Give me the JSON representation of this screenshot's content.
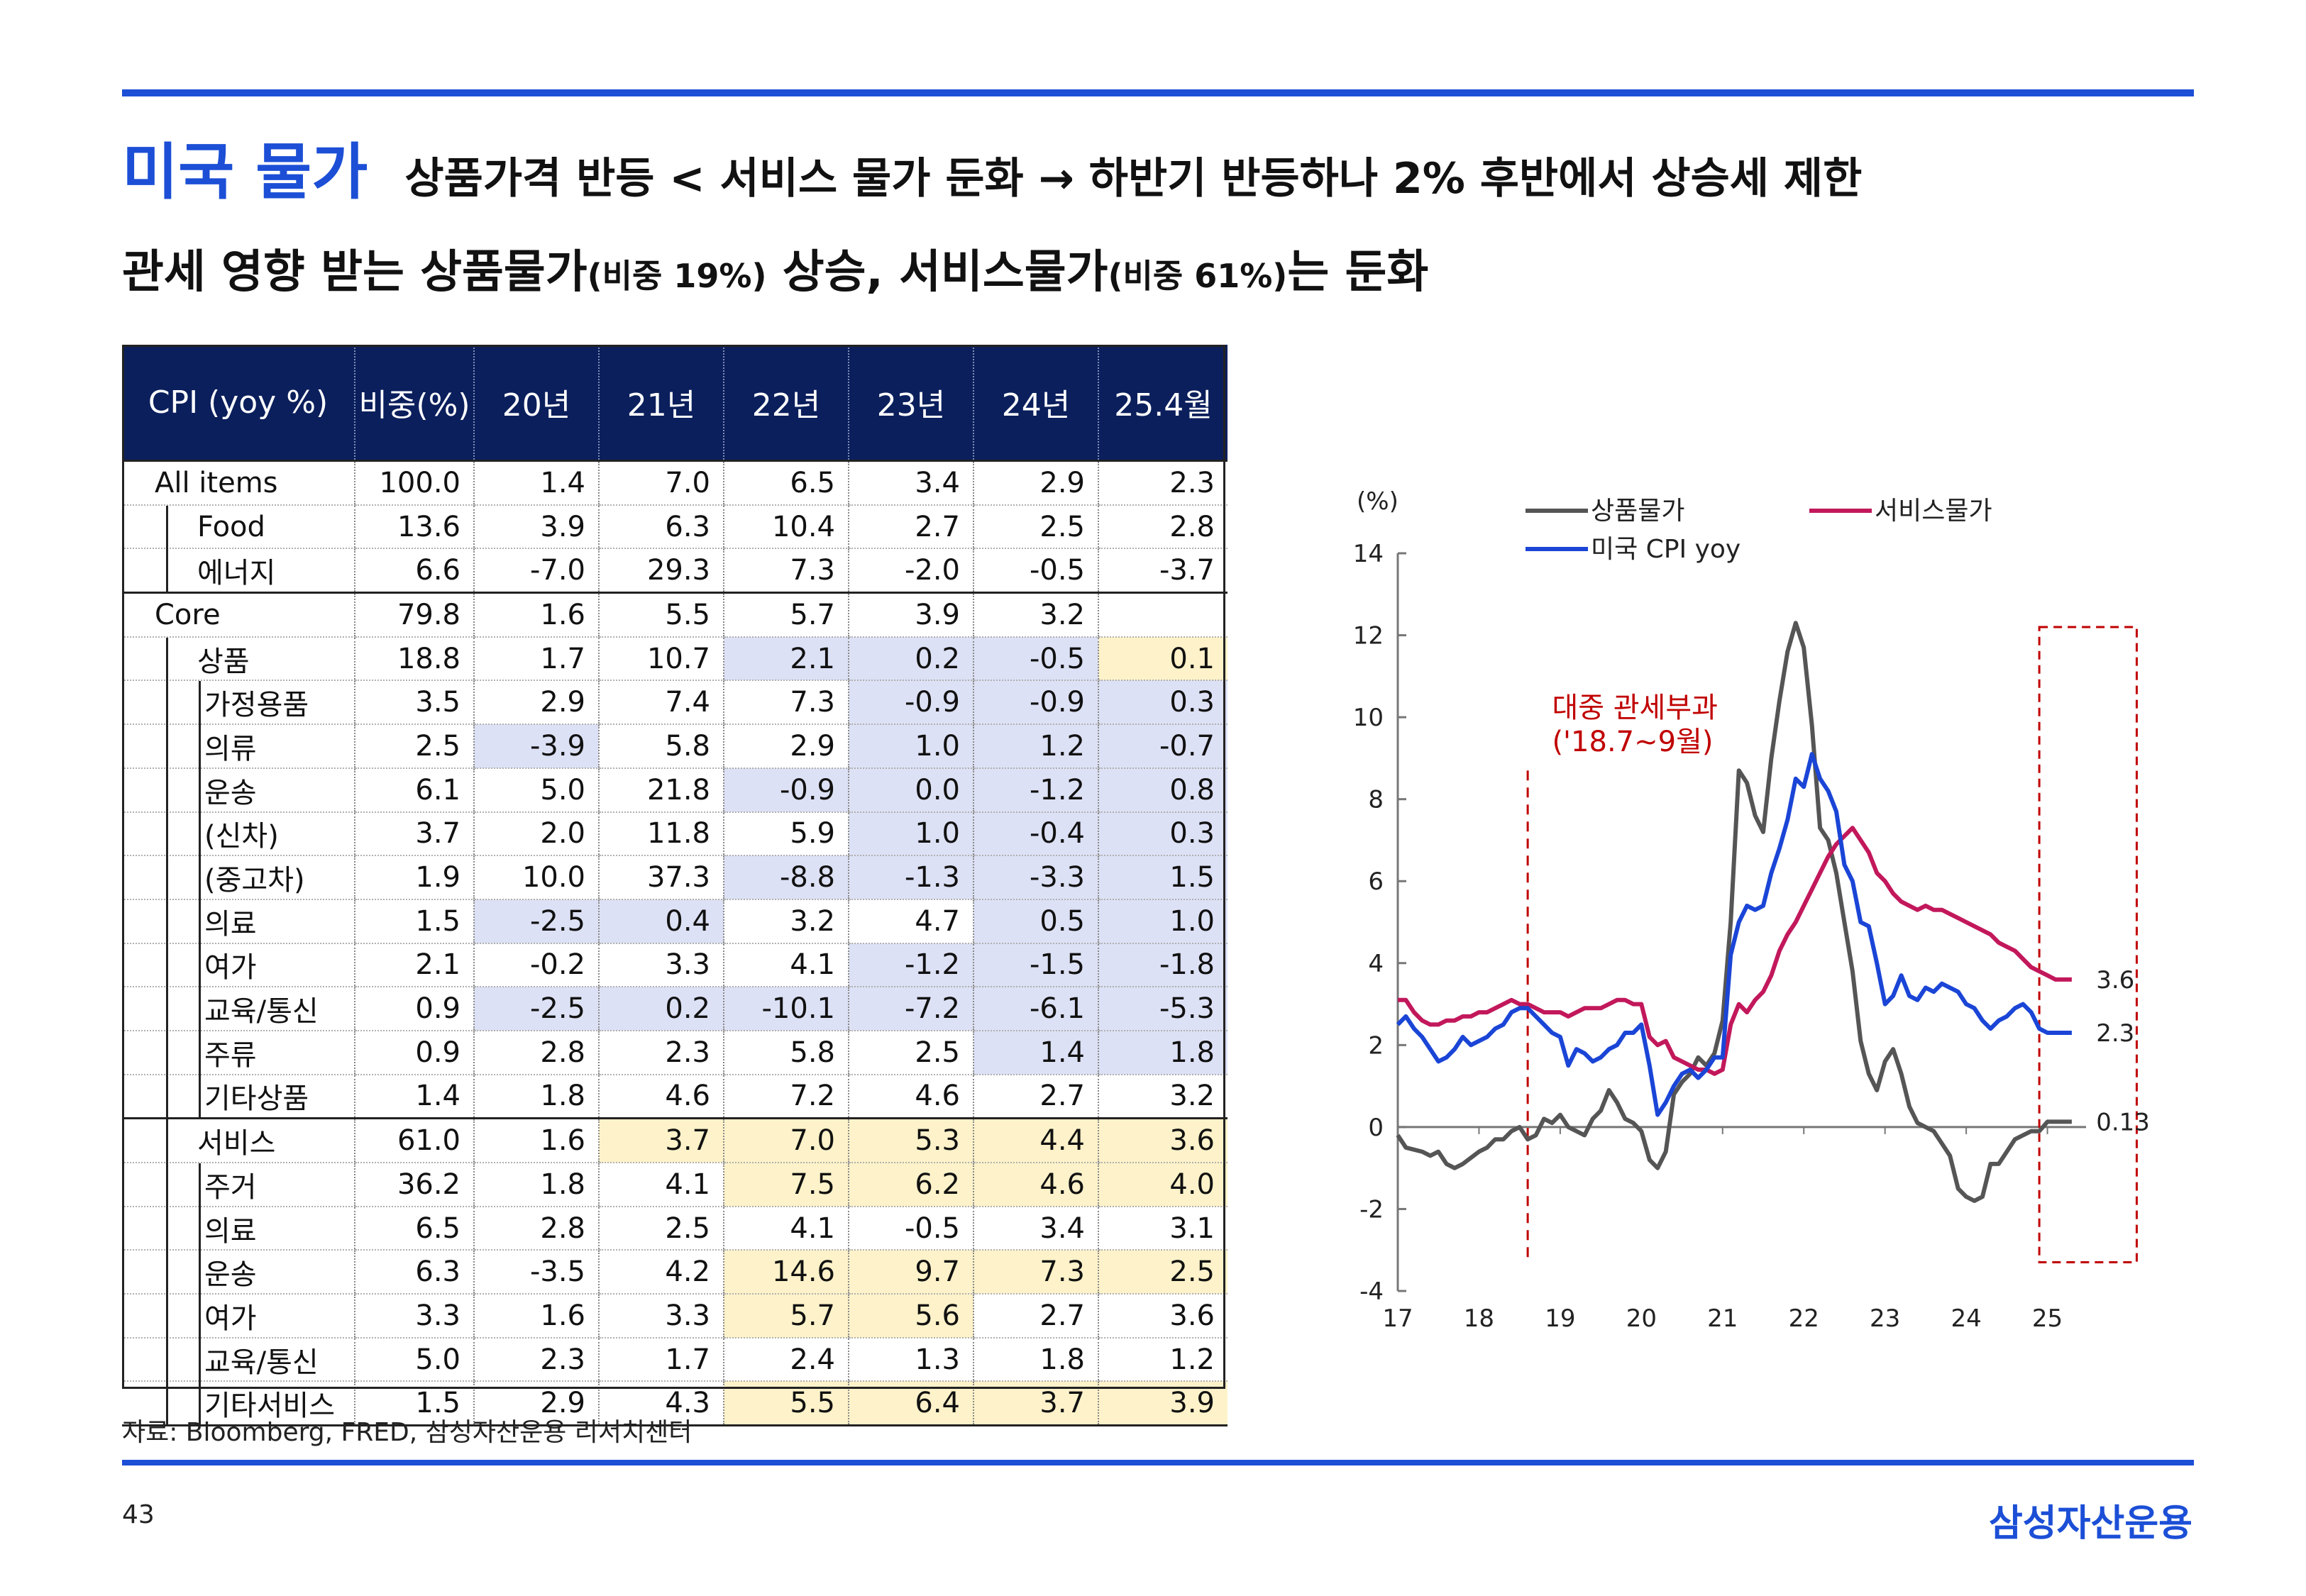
{
  "header": {
    "section_title": "미국 물가",
    "subtitle": "상품가격 반등 < 서비스 물가 둔화  → 하반기 반등하나 2% 후반에서 상승세 제한"
  },
  "headline": {
    "part1": "관세 영향 받는 상품물가",
    "part1_small": "(비중 19%)",
    "part2": " 상승, 서비스물가",
    "part2_small": "(비중 61%)",
    "part3": "는 둔화"
  },
  "table": {
    "headers": [
      "CPI (yoy %)",
      "비중(%)",
      "20년",
      "21년",
      "22년",
      "23년",
      "24년",
      "25.4월"
    ],
    "rows": [
      {
        "label": "All items",
        "indent": 0,
        "group_start": true,
        "values": [
          "100.0",
          "1.4",
          "7.0",
          "6.5",
          "3.4",
          "2.9",
          "2.3"
        ],
        "shade": [
          "",
          "",
          "",
          "",
          "",
          "",
          ""
        ]
      },
      {
        "label": "Food",
        "indent": 1,
        "values": [
          "13.6",
          "3.9",
          "6.3",
          "10.4",
          "2.7",
          "2.5",
          "2.8"
        ],
        "shade": [
          "",
          "",
          "",
          "",
          "",
          "",
          ""
        ]
      },
      {
        "label": "에너지",
        "indent": 1,
        "values": [
          "6.6",
          "-7.0",
          "29.3",
          "7.3",
          "-2.0",
          "-0.5",
          "-3.7"
        ],
        "shade": [
          "",
          "",
          "",
          "",
          "",
          "",
          ""
        ]
      },
      {
        "label": "Core",
        "indent": 0,
        "group_start": true,
        "values": [
          "79.8",
          "1.6",
          "5.5",
          "5.7",
          "3.9",
          "3.2",
          ""
        ],
        "shade": [
          "",
          "",
          "",
          "",
          "",
          "",
          ""
        ]
      },
      {
        "label": "상품",
        "indent": 1,
        "values": [
          "18.8",
          "1.7",
          "10.7",
          "2.1",
          "0.2",
          "-0.5",
          "0.1"
        ],
        "shade": [
          "",
          "",
          "",
          "blue",
          "blue",
          "blue",
          "yellow"
        ]
      },
      {
        "label": "가정용품",
        "indent": 2,
        "values": [
          "3.5",
          "2.9",
          "7.4",
          "7.3",
          "-0.9",
          "-0.9",
          "0.3"
        ],
        "shade": [
          "",
          "",
          "",
          "",
          "blue",
          "blue",
          "blue"
        ]
      },
      {
        "label": "의류",
        "indent": 2,
        "values": [
          "2.5",
          "-3.9",
          "5.8",
          "2.9",
          "1.0",
          "1.2",
          "-0.7"
        ],
        "shade": [
          "",
          "blue",
          "",
          "",
          "blue",
          "blue",
          "blue"
        ]
      },
      {
        "label": "운송",
        "indent": 2,
        "values": [
          "6.1",
          "5.0",
          "21.8",
          "-0.9",
          "0.0",
          "-1.2",
          "0.8"
        ],
        "shade": [
          "",
          "",
          "",
          "blue",
          "blue",
          "blue",
          "blue"
        ]
      },
      {
        "label": "(신차)",
        "indent": 2,
        "values": [
          "3.7",
          "2.0",
          "11.8",
          "5.9",
          "1.0",
          "-0.4",
          "0.3"
        ],
        "shade": [
          "",
          "",
          "",
          "",
          "blue",
          "blue",
          "blue"
        ]
      },
      {
        "label": "(중고차)",
        "indent": 2,
        "values": [
          "1.9",
          "10.0",
          "37.3",
          "-8.8",
          "-1.3",
          "-3.3",
          "1.5"
        ],
        "shade": [
          "",
          "",
          "",
          "blue",
          "blue",
          "blue",
          "blue"
        ]
      },
      {
        "label": "의료",
        "indent": 2,
        "values": [
          "1.5",
          "-2.5",
          "0.4",
          "3.2",
          "4.7",
          "0.5",
          "1.0"
        ],
        "shade": [
          "",
          "blue",
          "blue",
          "",
          "",
          "blue",
          "blue"
        ]
      },
      {
        "label": "여가",
        "indent": 2,
        "values": [
          "2.1",
          "-0.2",
          "3.3",
          "4.1",
          "-1.2",
          "-1.5",
          "-1.8"
        ],
        "shade": [
          "",
          "",
          "",
          "",
          "blue",
          "blue",
          "blue"
        ]
      },
      {
        "label": "교육/통신",
        "indent": 2,
        "values": [
          "0.9",
          "-2.5",
          "0.2",
          "-10.1",
          "-7.2",
          "-6.1",
          "-5.3"
        ],
        "shade": [
          "",
          "blue",
          "blue",
          "blue",
          "blue",
          "blue",
          "blue"
        ]
      },
      {
        "label": "주류",
        "indent": 2,
        "values": [
          "0.9",
          "2.8",
          "2.3",
          "5.8",
          "2.5",
          "1.4",
          "1.8"
        ],
        "shade": [
          "",
          "",
          "",
          "",
          "",
          "blue",
          "blue"
        ]
      },
      {
        "label": "기타상품",
        "indent": 2,
        "values": [
          "1.4",
          "1.8",
          "4.6",
          "7.2",
          "4.6",
          "2.7",
          "3.2"
        ],
        "shade": [
          "",
          "",
          "",
          "",
          "",
          "",
          ""
        ]
      },
      {
        "label": "서비스",
        "indent": 1,
        "group_line": true,
        "values": [
          "61.0",
          "1.6",
          "3.7",
          "7.0",
          "5.3",
          "4.4",
          "3.6"
        ],
        "shade": [
          "",
          "",
          "yellow",
          "yellow",
          "yellow",
          "yellow",
          "yellow"
        ]
      },
      {
        "label": "주거",
        "indent": 2,
        "values": [
          "36.2",
          "1.8",
          "4.1",
          "7.5",
          "6.2",
          "4.6",
          "4.0"
        ],
        "shade": [
          "",
          "",
          "",
          "yellow",
          "yellow",
          "yellow",
          "yellow"
        ]
      },
      {
        "label": "의료",
        "indent": 2,
        "values": [
          "6.5",
          "2.8",
          "2.5",
          "4.1",
          "-0.5",
          "3.4",
          "3.1"
        ],
        "shade": [
          "",
          "",
          "",
          "",
          "",
          "",
          ""
        ]
      },
      {
        "label": "운송",
        "indent": 2,
        "values": [
          "6.3",
          "-3.5",
          "4.2",
          "14.6",
          "9.7",
          "7.3",
          "2.5"
        ],
        "shade": [
          "",
          "",
          "",
          "yellow",
          "yellow",
          "yellow",
          "yellow"
        ]
      },
      {
        "label": "여가",
        "indent": 2,
        "values": [
          "3.3",
          "1.6",
          "3.3",
          "5.7",
          "5.6",
          "2.7",
          "3.6"
        ],
        "shade": [
          "",
          "",
          "",
          "yellow",
          "yellow",
          "",
          ""
        ]
      },
      {
        "label": "교육/통신",
        "indent": 2,
        "values": [
          "5.0",
          "2.3",
          "1.7",
          "2.4",
          "1.3",
          "1.8",
          "1.2"
        ],
        "shade": [
          "",
          "",
          "",
          "",
          "",
          "",
          ""
        ]
      },
      {
        "label": "기타서비스",
        "indent": 2,
        "values": [
          "1.5",
          "2.9",
          "4.3",
          "5.5",
          "6.4",
          "3.7",
          "3.9"
        ],
        "shade": [
          "",
          "",
          "",
          "yellow",
          "yellow",
          "yellow",
          "yellow"
        ]
      }
    ]
  },
  "footer": {
    "source": "자료: Bloomberg, FRED, 삼성자산운용 리서치센터",
    "page": "43",
    "brand": "삼성자산운용"
  },
  "colors": {
    "accent_blue": "#1c4fd6",
    "header_navy": "#0b1f5c",
    "shade_blue": "#dde1f5",
    "shade_yellow": "#fdf2c9",
    "goods_line": "#555555",
    "services_line": "#c2185b",
    "cpi_line": "#1a45d6",
    "annotation_red": "#c00000"
  },
  "chart_data": {
    "type": "line",
    "ylabel": "(%)",
    "ylim": [
      -4,
      14
    ],
    "yticks": [
      -4,
      -2,
      0,
      2,
      4,
      6,
      8,
      10,
      12,
      14
    ],
    "x_tick_labels": [
      "17",
      "18",
      "19",
      "20",
      "21",
      "22",
      "23",
      "24",
      "25"
    ],
    "x_tick_values": [
      2017,
      2018,
      2019,
      2020,
      2021,
      2022,
      2023,
      2024,
      2025
    ],
    "xlim": [
      2017,
      2026
    ],
    "legend_position": "top",
    "annotation": {
      "line1": "대중 관세부과",
      "line2": "('18.7~9월)",
      "x": 2018.6
    },
    "highlight_box": {
      "x_start": 2024.9,
      "x_end": 2026
    },
    "end_labels": {
      "services": "3.6",
      "cpi": "2.3",
      "goods": "0.13"
    },
    "series": [
      {
        "key": "goods",
        "name": "상품물가",
        "color": "#555555",
        "x": [
          2017.0,
          2017.1,
          2017.3,
          2017.4,
          2017.5,
          2017.6,
          2017.7,
          2017.8,
          2018.0,
          2018.1,
          2018.2,
          2018.3,
          2018.4,
          2018.5,
          2018.6,
          2018.7,
          2018.8,
          2018.9,
          2019.0,
          2019.1,
          2019.2,
          2019.3,
          2019.4,
          2019.5,
          2019.6,
          2019.7,
          2019.8,
          2019.9,
          2020.0,
          2020.1,
          2020.2,
          2020.3,
          2020.4,
          2020.5,
          2020.6,
          2020.7,
          2020.8,
          2020.9,
          2021.0,
          2021.1,
          2021.2,
          2021.3,
          2021.4,
          2021.5,
          2021.6,
          2021.7,
          2021.8,
          2021.9,
          2022.0,
          2022.1,
          2022.2,
          2022.3,
          2022.4,
          2022.5,
          2022.6,
          2022.7,
          2022.8,
          2022.9,
          2023.0,
          2023.1,
          2023.2,
          2023.3,
          2023.4,
          2023.5,
          2023.6,
          2023.7,
          2023.8,
          2023.9,
          2024.0,
          2024.1,
          2024.2,
          2024.3,
          2024.4,
          2024.5,
          2024.6,
          2024.7,
          2024.8,
          2024.9,
          2025.0,
          2025.1,
          2025.2,
          2025.3
        ],
        "y": [
          -0.2,
          -0.5,
          -0.6,
          -0.7,
          -0.6,
          -0.9,
          -1.0,
          -0.9,
          -0.6,
          -0.5,
          -0.3,
          -0.3,
          -0.1,
          0.0,
          -0.3,
          -0.2,
          0.2,
          0.1,
          0.3,
          0.0,
          -0.1,
          -0.2,
          0.2,
          0.4,
          0.9,
          0.6,
          0.2,
          0.1,
          -0.1,
          -0.8,
          -1.0,
          -0.6,
          0.8,
          1.1,
          1.3,
          1.7,
          1.5,
          1.8,
          2.6,
          5.0,
          8.7,
          8.4,
          7.6,
          7.2,
          9.0,
          10.4,
          11.6,
          12.3,
          11.7,
          9.8,
          7.3,
          7.0,
          6.2,
          5.0,
          3.8,
          2.1,
          1.3,
          0.9,
          1.6,
          1.9,
          1.3,
          0.5,
          0.1,
          0.0,
          -0.1,
          -0.4,
          -0.7,
          -1.5,
          -1.7,
          -1.8,
          -1.7,
          -0.9,
          -0.9,
          -0.6,
          -0.3,
          -0.2,
          -0.1,
          -0.1,
          0.13,
          0.13,
          0.13,
          0.13
        ]
      },
      {
        "key": "services",
        "name": "서비스물가",
        "color": "#c2185b",
        "x": [
          2017.0,
          2017.1,
          2017.2,
          2017.3,
          2017.4,
          2017.5,
          2017.6,
          2017.7,
          2017.8,
          2017.9,
          2018.0,
          2018.1,
          2018.2,
          2018.3,
          2018.4,
          2018.5,
          2018.6,
          2018.7,
          2018.8,
          2018.9,
          2019.0,
          2019.1,
          2019.2,
          2019.3,
          2019.4,
          2019.5,
          2019.6,
          2019.7,
          2019.8,
          2019.9,
          2020.0,
          2020.1,
          2020.2,
          2020.3,
          2020.4,
          2020.5,
          2020.6,
          2020.7,
          2020.8,
          2020.9,
          2021.0,
          2021.1,
          2021.2,
          2021.3,
          2021.4,
          2021.5,
          2021.6,
          2021.7,
          2021.8,
          2021.9,
          2022.0,
          2022.1,
          2022.2,
          2022.3,
          2022.4,
          2022.5,
          2022.6,
          2022.7,
          2022.8,
          2022.9,
          2023.0,
          2023.1,
          2023.2,
          2023.3,
          2023.4,
          2023.5,
          2023.6,
          2023.7,
          2023.8,
          2023.9,
          2024.0,
          2024.1,
          2024.2,
          2024.3,
          2024.4,
          2024.5,
          2024.6,
          2024.7,
          2024.8,
          2024.9,
          2025.0,
          2025.1,
          2025.2,
          2025.3
        ],
        "y": [
          3.1,
          3.1,
          2.8,
          2.6,
          2.5,
          2.5,
          2.6,
          2.6,
          2.7,
          2.7,
          2.8,
          2.8,
          2.9,
          3.0,
          3.1,
          3.0,
          3.0,
          2.9,
          2.8,
          2.8,
          2.8,
          2.7,
          2.8,
          2.9,
          2.9,
          2.9,
          3.0,
          3.1,
          3.1,
          3.0,
          3.0,
          2.2,
          2.0,
          2.1,
          1.7,
          1.6,
          1.5,
          1.4,
          1.4,
          1.3,
          1.4,
          2.5,
          3.0,
          2.8,
          3.1,
          3.3,
          3.7,
          4.3,
          4.7,
          5.0,
          5.4,
          5.8,
          6.2,
          6.6,
          6.9,
          7.1,
          7.3,
          7.0,
          6.7,
          6.2,
          6.0,
          5.7,
          5.5,
          5.4,
          5.3,
          5.4,
          5.3,
          5.3,
          5.2,
          5.1,
          5.0,
          4.9,
          4.8,
          4.7,
          4.5,
          4.4,
          4.3,
          4.1,
          3.9,
          3.8,
          3.7,
          3.6,
          3.6,
          3.6
        ]
      },
      {
        "key": "cpi",
        "name": "미국 CPI yoy",
        "color": "#1a45d6",
        "x": [
          2017.0,
          2017.1,
          2017.2,
          2017.3,
          2017.4,
          2017.5,
          2017.6,
          2017.7,
          2017.8,
          2017.9,
          2018.0,
          2018.1,
          2018.2,
          2018.3,
          2018.4,
          2018.5,
          2018.6,
          2018.7,
          2018.8,
          2018.9,
          2019.0,
          2019.1,
          2019.2,
          2019.3,
          2019.4,
          2019.5,
          2019.6,
          2019.7,
          2019.8,
          2019.9,
          2020.0,
          2020.1,
          2020.2,
          2020.3,
          2020.4,
          2020.5,
          2020.6,
          2020.7,
          2020.8,
          2020.9,
          2021.0,
          2021.1,
          2021.2,
          2021.3,
          2021.4,
          2021.5,
          2021.6,
          2021.7,
          2021.8,
          2021.9,
          2022.0,
          2022.1,
          2022.2,
          2022.3,
          2022.4,
          2022.5,
          2022.6,
          2022.7,
          2022.8,
          2022.9,
          2023.0,
          2023.1,
          2023.2,
          2023.3,
          2023.4,
          2023.5,
          2023.6,
          2023.7,
          2023.8,
          2023.9,
          2024.0,
          2024.1,
          2024.2,
          2024.3,
          2024.4,
          2024.5,
          2024.6,
          2024.7,
          2024.8,
          2024.9,
          2025.0,
          2025.1,
          2025.2,
          2025.3
        ],
        "y": [
          2.5,
          2.7,
          2.4,
          2.2,
          1.9,
          1.6,
          1.7,
          1.9,
          2.2,
          2.0,
          2.1,
          2.2,
          2.4,
          2.5,
          2.8,
          2.9,
          2.9,
          2.7,
          2.5,
          2.3,
          2.2,
          1.5,
          1.9,
          1.8,
          1.6,
          1.7,
          1.9,
          2.0,
          2.3,
          2.3,
          2.5,
          1.5,
          0.3,
          0.6,
          1.0,
          1.3,
          1.4,
          1.2,
          1.4,
          1.7,
          1.7,
          4.2,
          5.0,
          5.4,
          5.3,
          5.4,
          6.2,
          6.8,
          7.5,
          8.5,
          8.3,
          9.1,
          8.5,
          8.2,
          7.7,
          6.4,
          6.0,
          5.0,
          4.9,
          4.0,
          3.0,
          3.2,
          3.7,
          3.2,
          3.1,
          3.4,
          3.3,
          3.5,
          3.4,
          3.3,
          3.0,
          2.9,
          2.6,
          2.4,
          2.6,
          2.7,
          2.9,
          3.0,
          2.8,
          2.4,
          2.3,
          2.3,
          2.3,
          2.3
        ]
      }
    ]
  }
}
